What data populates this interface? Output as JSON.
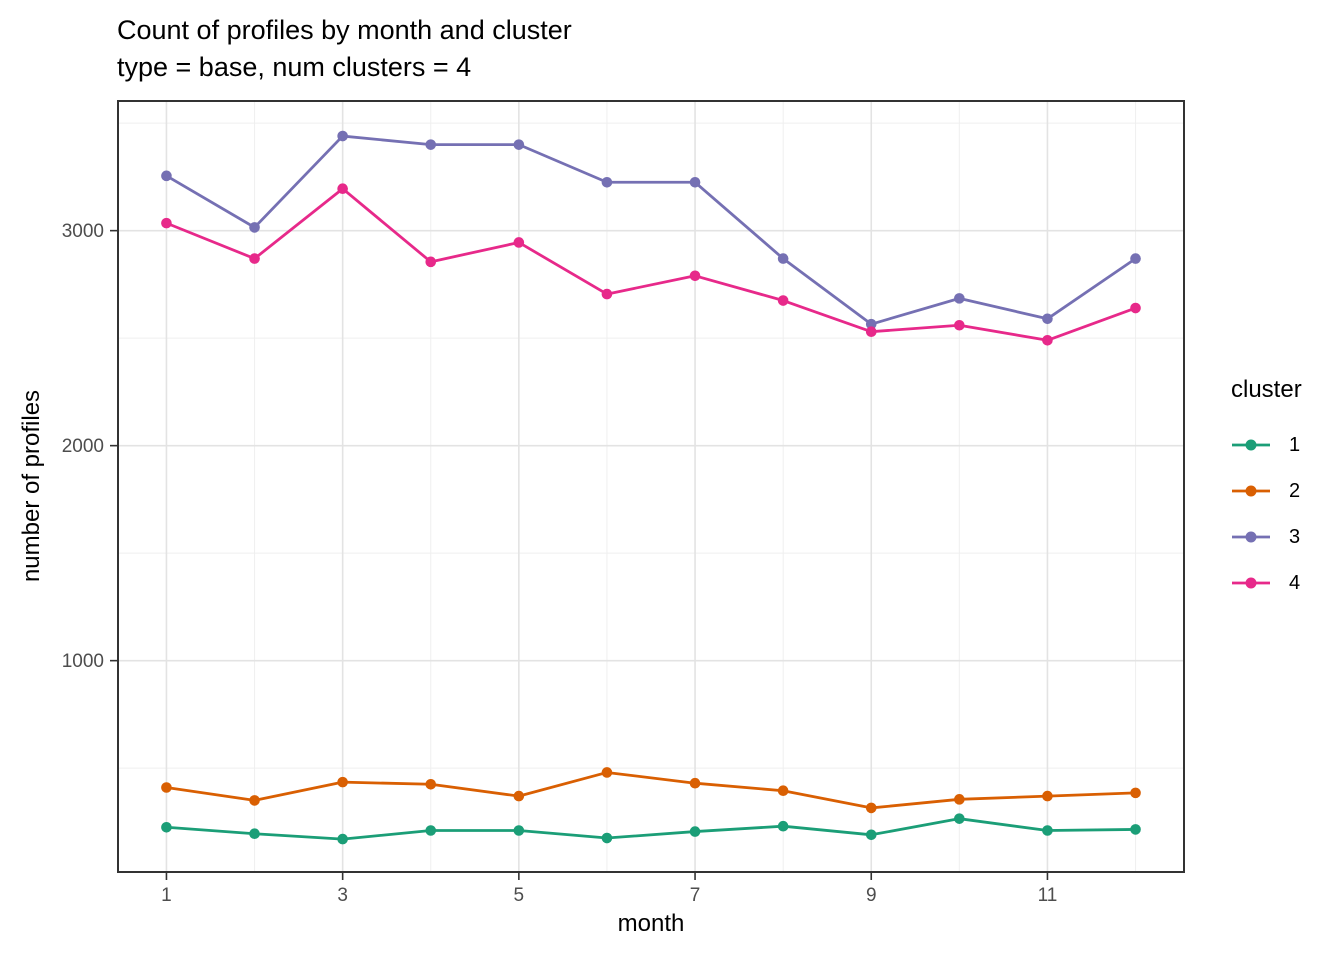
{
  "figure": {
    "title_line1": "Count of profiles by month and cluster",
    "title_line2": "type = base, num clusters = 4",
    "xlabel": "month",
    "ylabel": "number of profiles"
  },
  "legend": {
    "title": "cluster",
    "entries": [
      {
        "label": "1",
        "color": "#1b9e77"
      },
      {
        "label": "2",
        "color": "#d95f02"
      },
      {
        "label": "3",
        "color": "#7570b3"
      },
      {
        "label": "4",
        "color": "#e7298a"
      }
    ]
  },
  "style": {
    "background": "#ffffff",
    "grid_major": "#e3e3e3",
    "grid_minor": "#efefef",
    "panel_border": "#333333",
    "tick_mark": "#333333",
    "tick_label_color": "#4d4d4d",
    "text_color": "#000000"
  },
  "chart_data": {
    "type": "line",
    "title": "Count of profiles by month and cluster",
    "subtitle": "type = base, num clusters = 4",
    "xlabel": "month",
    "ylabel": "number of profiles",
    "x": [
      1,
      2,
      3,
      4,
      5,
      6,
      7,
      8,
      9,
      10,
      11,
      12
    ],
    "series": [
      {
        "name": "1",
        "color": "#1b9e77",
        "values": [
          225,
          195,
          170,
          210,
          210,
          175,
          205,
          230,
          190,
          265,
          210,
          215
        ]
      },
      {
        "name": "2",
        "color": "#d95f02",
        "values": [
          410,
          350,
          435,
          425,
          370,
          480,
          430,
          395,
          315,
          355,
          370,
          385
        ]
      },
      {
        "name": "3",
        "color": "#7570b3",
        "values": [
          3255,
          3015,
          3440,
          3400,
          3400,
          3225,
          3225,
          2870,
          2565,
          2685,
          2590,
          2870
        ]
      },
      {
        "name": "4",
        "color": "#e7298a",
        "values": [
          3035,
          2870,
          3195,
          2855,
          2945,
          2705,
          2790,
          2675,
          2530,
          2560,
          2490,
          2640
        ]
      }
    ],
    "x_ticks": [
      1,
      3,
      5,
      7,
      9,
      11
    ],
    "x_minor": [
      2,
      4,
      6,
      8,
      10,
      12
    ],
    "y_ticks": [
      1000,
      2000,
      3000
    ],
    "y_minor": [
      500,
      1500,
      2500,
      3500
    ],
    "xlim": [
      0.45,
      12.55
    ],
    "ylim": [
      17,
      3603
    ],
    "grid": true,
    "legend_position": "right",
    "legend_title": "cluster"
  }
}
